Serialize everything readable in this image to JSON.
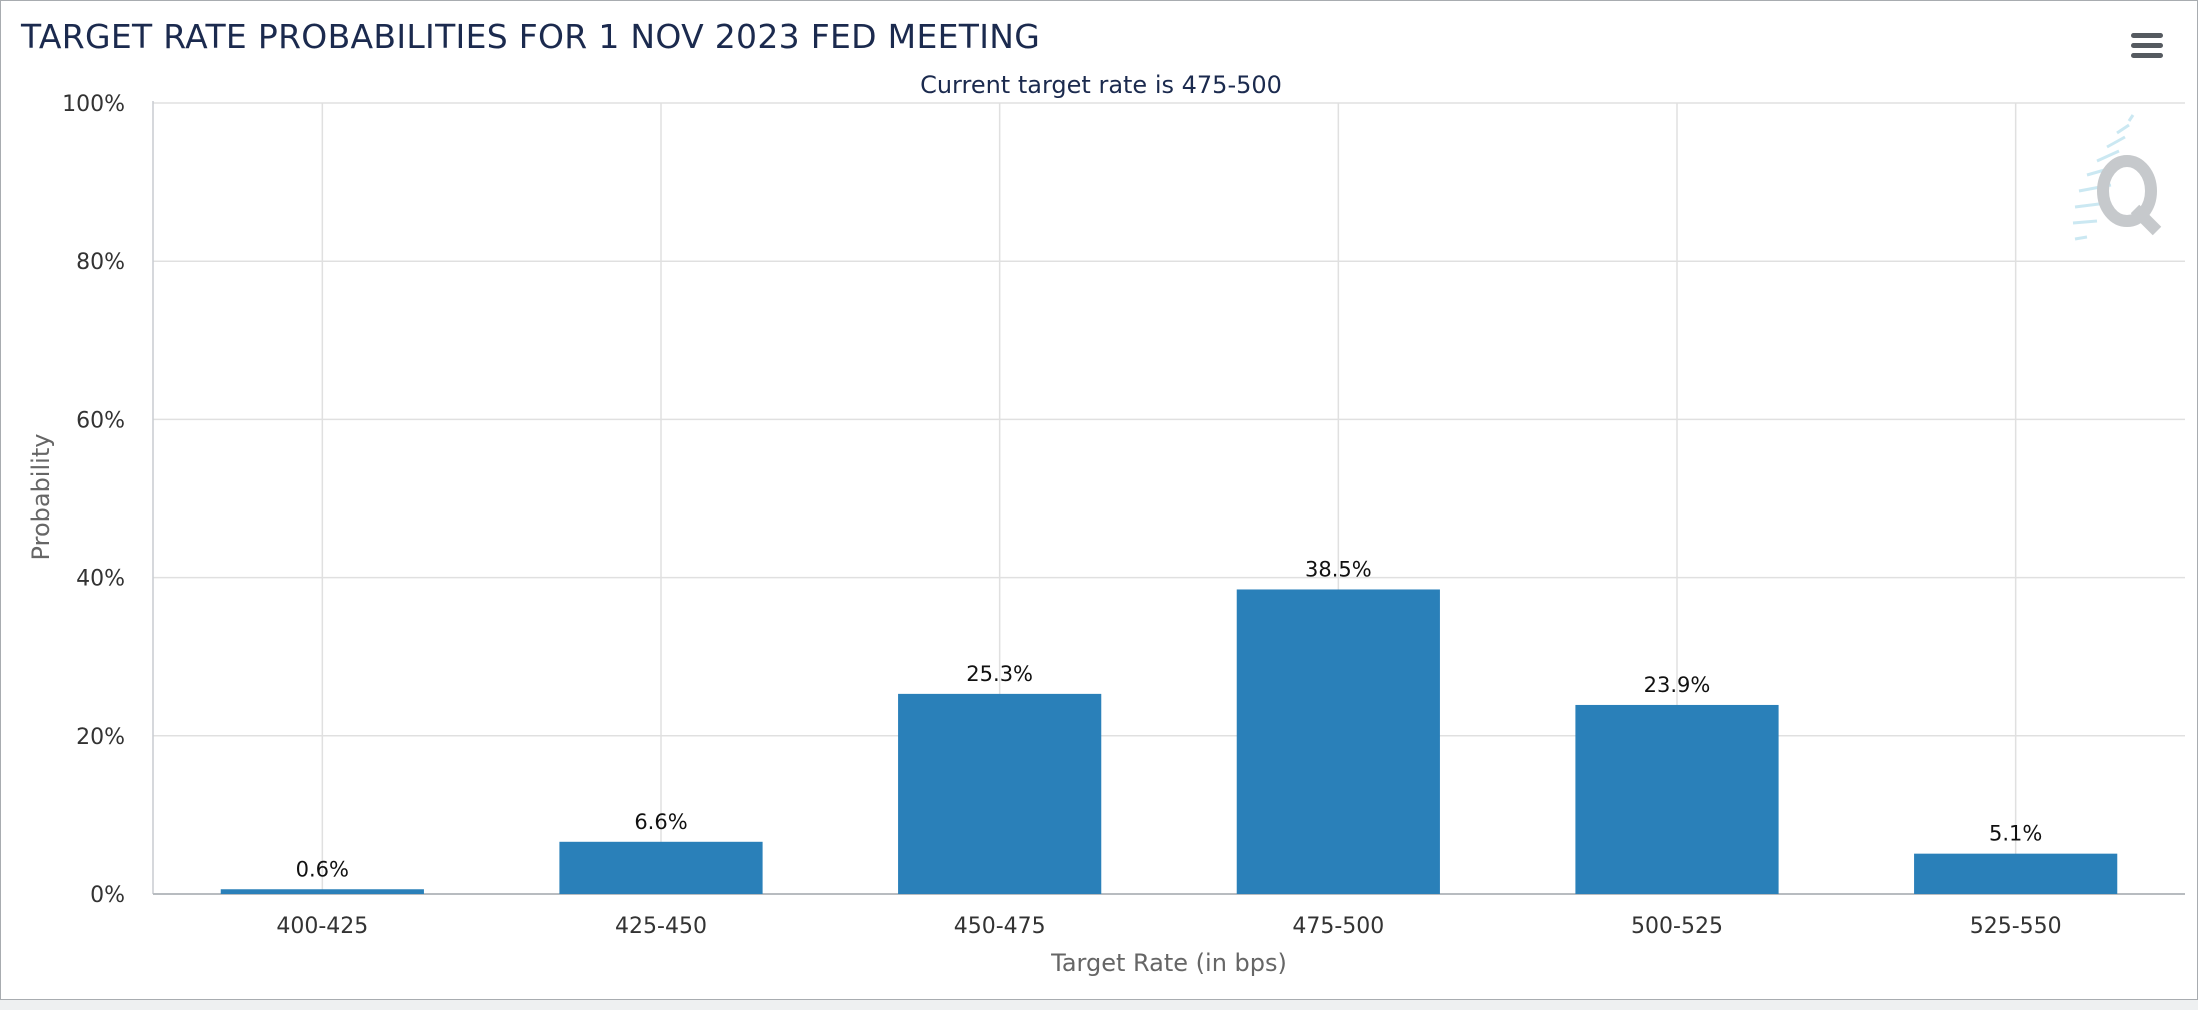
{
  "chart_data": {
    "type": "bar",
    "title": "TARGET RATE PROBABILITIES FOR 1 NOV 2023 FED MEETING",
    "subtitle": "Current target rate is 475-500",
    "xlabel": "Target Rate (in bps)",
    "ylabel": "Probability",
    "categories": [
      "400-425",
      "425-450",
      "450-475",
      "475-500",
      "500-525",
      "525-550"
    ],
    "values": [
      0.6,
      6.6,
      25.3,
      38.5,
      23.9,
      5.1
    ],
    "data_labels": [
      "0.6%",
      "6.6%",
      "25.3%",
      "38.5%",
      "23.9%",
      "5.1%"
    ],
    "ylim": [
      0,
      100
    ],
    "yticks": [
      0,
      20,
      40,
      60,
      80,
      100
    ],
    "ytick_labels": [
      "0%",
      "20%",
      "40%",
      "60%",
      "80%",
      "100%"
    ],
    "grid": true,
    "legend": "none",
    "bar_color": "#2a80b9"
  },
  "icons": {
    "menu": "hamburger-menu-icon",
    "watermark": "q-logo-icon"
  }
}
